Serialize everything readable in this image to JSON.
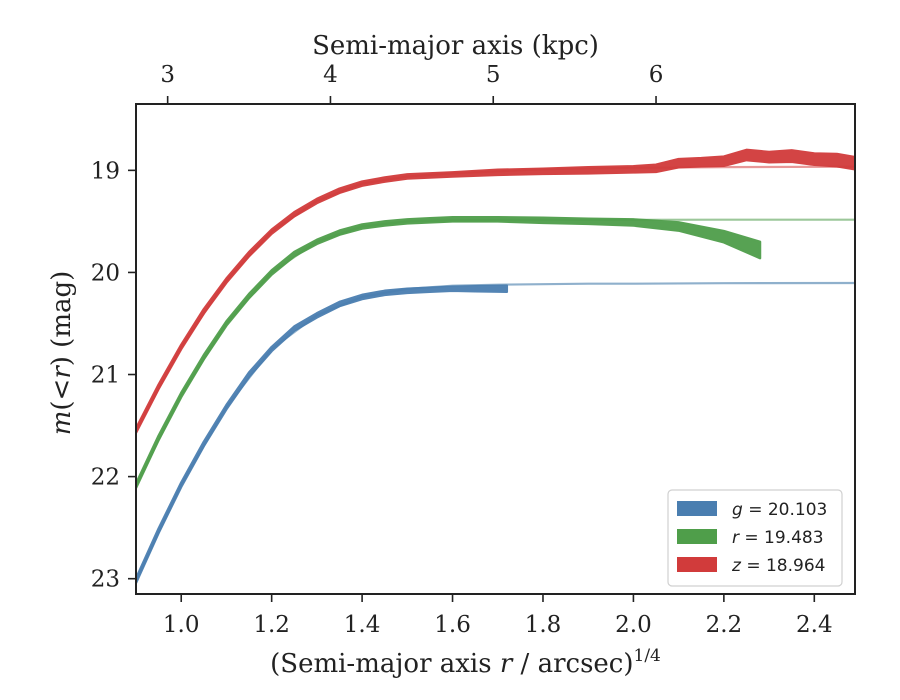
{
  "chart_data": {
    "type": "line",
    "title": "",
    "xlabel": "(Semi-major axis r / arcsec)^1/4",
    "xlabel_parts": {
      "main": "(Semi-major axis ",
      "var": "r",
      "rest": " / arcsec)",
      "sup": "1/4"
    },
    "ylabel": "m(<r) (mag)",
    "ylabel_parts": {
      "var": "m",
      "open": "(",
      "lt": "<",
      "r": "r",
      "close": ")",
      "unit": " (mag)"
    },
    "top_xlabel": "Semi-major axis (kpc)",
    "xlim": [
      0.9,
      2.49
    ],
    "ylim": [
      23.15,
      18.35
    ],
    "y_inverted": true,
    "x_ticks": [
      1.0,
      1.2,
      1.4,
      1.6,
      1.8,
      2.0,
      2.2,
      2.4
    ],
    "x_tick_labels": [
      "1.0",
      "1.2",
      "1.4",
      "1.6",
      "1.8",
      "2.0",
      "2.2",
      "2.4"
    ],
    "y_ticks": [
      19,
      20,
      21,
      22,
      23
    ],
    "y_tick_labels": [
      "19",
      "20",
      "21",
      "22",
      "23"
    ],
    "top_ticks": [
      {
        "label": "3",
        "x": 0.97
      },
      {
        "label": "4",
        "x": 1.33
      },
      {
        "label": "5",
        "x": 1.69
      },
      {
        "label": "6",
        "x": 2.05
      }
    ],
    "grid": false,
    "legend_position": "bottom-right",
    "series": [
      {
        "name": "g = 20.103",
        "legend_var": "g",
        "legend_value": "= 20.103",
        "color": "#4a7eb0",
        "model_color": "#8fb0cc",
        "x": [
          0.9,
          0.95,
          1.0,
          1.05,
          1.1,
          1.15,
          1.2,
          1.25,
          1.3,
          1.35,
          1.4,
          1.45,
          1.5,
          1.55,
          1.6,
          1.65,
          1.72
        ],
        "y": [
          23.02,
          22.53,
          22.08,
          21.68,
          21.32,
          21.0,
          20.75,
          20.55,
          20.42,
          20.31,
          20.24,
          20.2,
          20.18,
          20.17,
          20.16,
          20.16,
          20.16
        ],
        "band_halfwidth": [
          0.02,
          0.02,
          0.02,
          0.02,
          0.02,
          0.02,
          0.02,
          0.02,
          0.02,
          0.02,
          0.02,
          0.02,
          0.02,
          0.02,
          0.02,
          0.025,
          0.03
        ],
        "model_x": [
          0.9,
          1.0,
          1.1,
          1.2,
          1.3,
          1.4,
          1.5,
          1.6,
          1.7,
          1.8,
          1.9,
          2.0,
          2.2,
          2.49
        ],
        "model_y": [
          23.02,
          22.08,
          21.32,
          20.75,
          20.42,
          20.24,
          20.16,
          20.13,
          20.12,
          20.115,
          20.11,
          20.11,
          20.105,
          20.103
        ]
      },
      {
        "name": "r = 19.483",
        "legend_var": "r",
        "legend_value": "= 19.483",
        "color": "#4f9e4a",
        "model_color": "#9cc79a",
        "x": [
          0.9,
          0.95,
          1.0,
          1.05,
          1.1,
          1.15,
          1.2,
          1.25,
          1.3,
          1.35,
          1.4,
          1.45,
          1.5,
          1.55,
          1.6,
          1.7,
          1.8,
          1.9,
          2.0,
          2.1,
          2.2,
          2.28
        ],
        "y": [
          22.09,
          21.62,
          21.2,
          20.83,
          20.5,
          20.23,
          20.0,
          19.82,
          19.7,
          19.61,
          19.55,
          19.52,
          19.5,
          19.49,
          19.48,
          19.48,
          19.49,
          19.5,
          19.51,
          19.55,
          19.65,
          19.78
        ],
        "band_halfwidth": [
          0.02,
          0.02,
          0.02,
          0.02,
          0.02,
          0.02,
          0.02,
          0.02,
          0.02,
          0.02,
          0.02,
          0.02,
          0.02,
          0.02,
          0.02,
          0.02,
          0.025,
          0.025,
          0.03,
          0.04,
          0.055,
          0.08
        ],
        "model_x": [
          0.9,
          1.0,
          1.1,
          1.2,
          1.3,
          1.4,
          1.5,
          1.6,
          1.8,
          2.0,
          2.2,
          2.49
        ],
        "model_y": [
          22.09,
          21.2,
          20.5,
          20.0,
          19.7,
          19.55,
          19.5,
          19.49,
          19.485,
          19.484,
          19.483,
          19.483
        ]
      },
      {
        "name": "z = 18.964",
        "legend_var": "z",
        "legend_value": "= 18.964",
        "color": "#d13b3b",
        "model_color": "#e89898",
        "x": [
          0.9,
          0.95,
          1.0,
          1.05,
          1.1,
          1.15,
          1.2,
          1.25,
          1.3,
          1.35,
          1.4,
          1.45,
          1.5,
          1.55,
          1.6,
          1.7,
          1.8,
          1.9,
          2.0,
          2.05,
          2.1,
          2.15,
          2.2,
          2.25,
          2.3,
          2.35,
          2.4,
          2.45,
          2.49
        ],
        "y": [
          21.55,
          21.12,
          20.73,
          20.38,
          20.08,
          19.82,
          19.6,
          19.43,
          19.3,
          19.2,
          19.13,
          19.09,
          19.06,
          19.05,
          19.04,
          19.02,
          19.01,
          19.0,
          18.99,
          18.98,
          18.93,
          18.92,
          18.91,
          18.85,
          18.87,
          18.86,
          18.89,
          18.9,
          18.93
        ],
        "band_halfwidth": [
          0.02,
          0.02,
          0.02,
          0.02,
          0.02,
          0.02,
          0.02,
          0.02,
          0.02,
          0.02,
          0.02,
          0.02,
          0.02,
          0.02,
          0.02,
          0.025,
          0.025,
          0.03,
          0.03,
          0.035,
          0.04,
          0.04,
          0.045,
          0.05,
          0.05,
          0.055,
          0.055,
          0.06,
          0.06
        ],
        "model_x": [
          0.9,
          1.0,
          1.1,
          1.2,
          1.3,
          1.4,
          1.5,
          1.6,
          1.8,
          2.0,
          2.2,
          2.49
        ],
        "model_y": [
          21.55,
          20.73,
          20.08,
          19.6,
          19.3,
          19.13,
          19.06,
          19.03,
          18.99,
          18.975,
          18.968,
          18.964
        ]
      }
    ]
  }
}
